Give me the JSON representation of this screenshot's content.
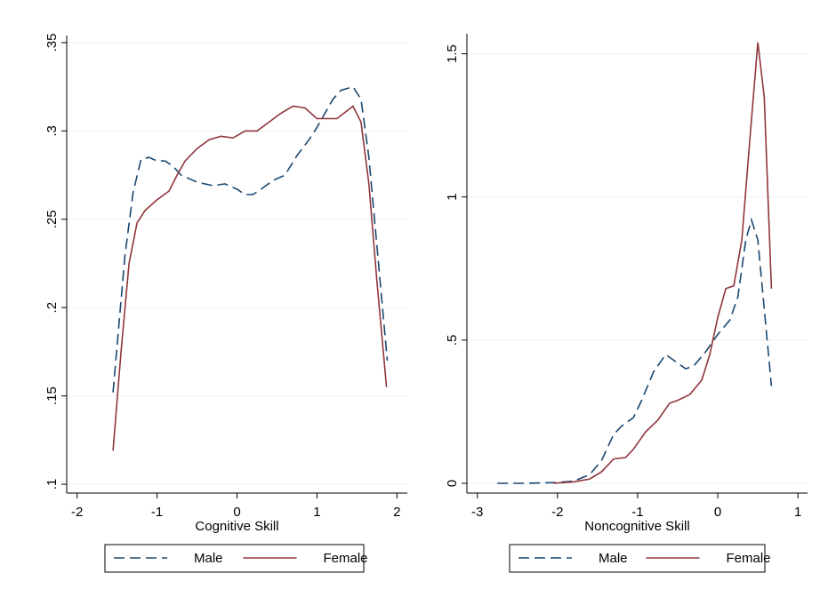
{
  "chart_data": [
    {
      "type": "line",
      "x_label": "Cognitive Skill",
      "xlim": [
        -2.13,
        2.13
      ],
      "ylim": [
        0.095,
        0.354
      ],
      "xticks": [
        -2,
        -1,
        0,
        1,
        2
      ],
      "yticks": [
        {
          "value": 0.1,
          "label": ".1"
        },
        {
          "value": 0.15,
          "label": ".15"
        },
        {
          "value": 0.2,
          "label": ".2"
        },
        {
          "value": 0.25,
          "label": ".25"
        },
        {
          "value": 0.3,
          "label": ".3"
        },
        {
          "value": 0.35,
          "label": ".35"
        }
      ],
      "grid": true,
      "legend": "bottom",
      "series": [
        {
          "name": "Male",
          "color": "#1a476f",
          "line_style": "dashed",
          "x": [
            -1.55,
            -1.4,
            -1.3,
            -1.2,
            -1.1,
            -1.0,
            -0.9,
            -0.8,
            -0.7,
            -0.5,
            -0.3,
            -0.15,
            0,
            0.1,
            0.2,
            0.3,
            0.45,
            0.6,
            0.75,
            0.9,
            1.0,
            1.1,
            1.2,
            1.3,
            1.45,
            1.55,
            1.65,
            1.75,
            1.88
          ],
          "values": [
            0.152,
            0.23,
            0.265,
            0.284,
            0.285,
            0.283,
            0.283,
            0.28,
            0.275,
            0.271,
            0.269,
            0.27,
            0.267,
            0.264,
            0.264,
            0.267,
            0.272,
            0.275,
            0.286,
            0.295,
            0.302,
            0.31,
            0.318,
            0.323,
            0.325,
            0.318,
            0.285,
            0.235,
            0.17
          ]
        },
        {
          "name": "Female",
          "color": "#90353b",
          "line_style": "solid",
          "x": [
            -1.55,
            -1.45,
            -1.35,
            -1.25,
            -1.15,
            -1.0,
            -0.85,
            -0.75,
            -0.65,
            -0.5,
            -0.35,
            -0.2,
            -0.05,
            0.1,
            0.25,
            0.4,
            0.55,
            0.7,
            0.85,
            1.0,
            1.1,
            1.25,
            1.45,
            1.55,
            1.65,
            1.75,
            1.87
          ],
          "values": [
            0.119,
            0.175,
            0.225,
            0.248,
            0.255,
            0.261,
            0.266,
            0.275,
            0.283,
            0.29,
            0.295,
            0.297,
            0.296,
            0.3,
            0.3,
            0.305,
            0.31,
            0.314,
            0.313,
            0.307,
            0.307,
            0.307,
            0.314,
            0.305,
            0.27,
            0.215,
            0.155
          ]
        }
      ]
    },
    {
      "type": "line",
      "x_label": "Noncognitive Skill",
      "xlim": [
        -3.13,
        1.12
      ],
      "ylim": [
        -0.034,
        1.57
      ],
      "xticks": [
        -3,
        -2,
        -1,
        0,
        1
      ],
      "yticks": [
        0,
        {
          "value": 0.5,
          "label": ".5"
        },
        1,
        1.5
      ],
      "grid": true,
      "legend": "bottom",
      "series": [
        {
          "name": "Male",
          "color": "#1a476f",
          "line_style": "dashed",
          "x": [
            -2.75,
            -2.4,
            -2.0,
            -1.8,
            -1.6,
            -1.45,
            -1.3,
            -1.2,
            -1.05,
            -0.95,
            -0.8,
            -0.65,
            -0.5,
            -0.4,
            -0.3,
            -0.15,
            0,
            0.15,
            0.25,
            0.35,
            0.42,
            0.5,
            0.6,
            0.67
          ],
          "values": [
            0,
            0,
            0.003,
            0.008,
            0.03,
            0.08,
            0.17,
            0.2,
            0.23,
            0.29,
            0.39,
            0.45,
            0.42,
            0.4,
            0.41,
            0.46,
            0.52,
            0.57,
            0.65,
            0.85,
            0.92,
            0.85,
            0.55,
            0.34
          ]
        },
        {
          "name": "Female",
          "color": "#90353b",
          "line_style": "solid",
          "x": [
            -2.05,
            -1.8,
            -1.6,
            -1.45,
            -1.3,
            -1.15,
            -1.05,
            -0.9,
            -0.75,
            -0.6,
            -0.5,
            -0.35,
            -0.2,
            -0.1,
            0,
            0.1,
            0.2,
            0.3,
            0.4,
            0.5,
            0.58,
            0.67
          ],
          "values": [
            0,
            0.005,
            0.015,
            0.04,
            0.085,
            0.09,
            0.12,
            0.18,
            0.22,
            0.28,
            0.29,
            0.31,
            0.36,
            0.45,
            0.58,
            0.68,
            0.69,
            0.85,
            1.2,
            1.54,
            1.35,
            0.68
          ]
        }
      ]
    }
  ]
}
